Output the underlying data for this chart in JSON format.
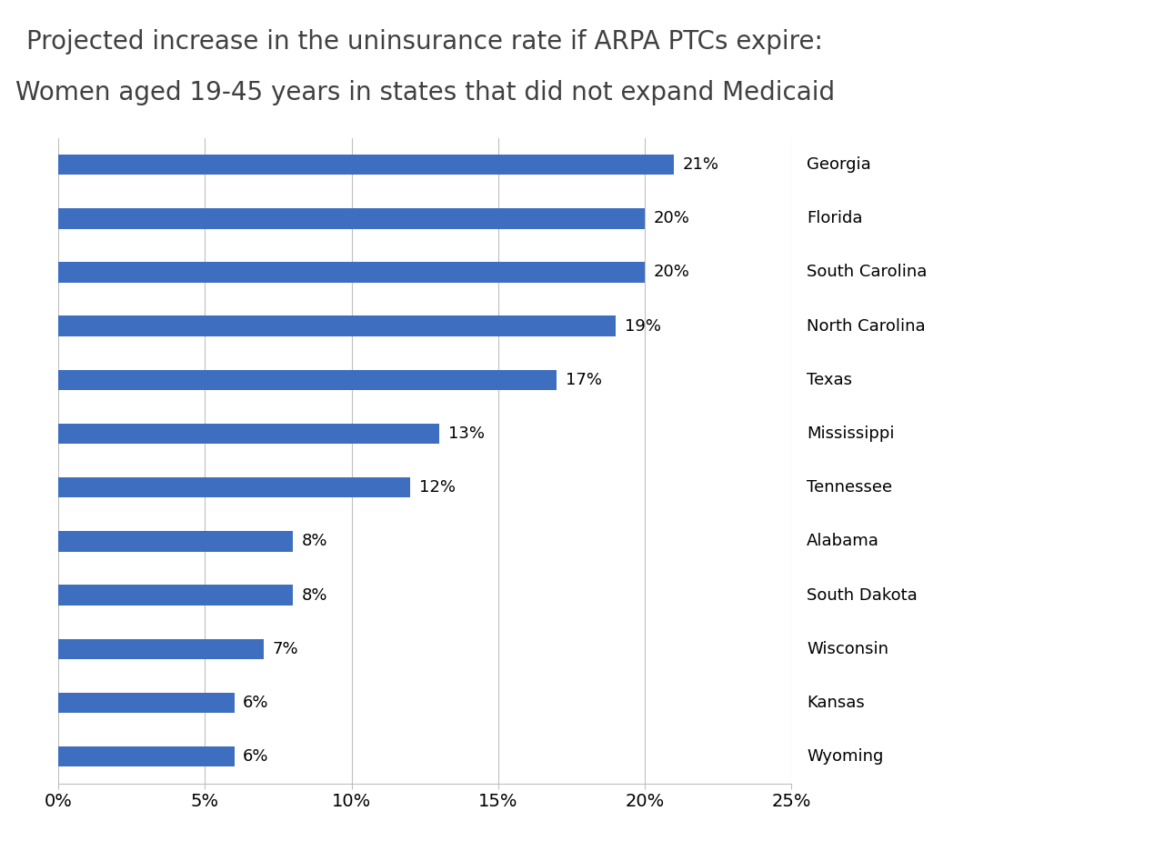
{
  "title_line1": "Projected increase in the uninsurance rate if ARPA PTCs expire:",
  "title_line2": "Women aged 19-45 years in states that did not expand Medicaid",
  "states": [
    "Georgia",
    "Florida",
    "South Carolina",
    "North Carolina",
    "Texas",
    "Mississippi",
    "Tennessee",
    "Alabama",
    "South Dakota",
    "Wisconsin",
    "Kansas",
    "Wyoming"
  ],
  "values": [
    21,
    20,
    20,
    19,
    17,
    13,
    12,
    8,
    8,
    7,
    6,
    6
  ],
  "labels": [
    "21%",
    "20%",
    "20%",
    "19%",
    "17%",
    "13%",
    "12%",
    "8%",
    "8%",
    "7%",
    "6%",
    "6%"
  ],
  "bar_color": "#3D6EBF",
  "xlim": [
    0,
    25
  ],
  "xticks": [
    0,
    5,
    10,
    15,
    20,
    25
  ],
  "xticklabels": [
    "0%",
    "5%",
    "10%",
    "15%",
    "20%",
    "25%"
  ],
  "background_color": "#FFFFFF",
  "title_fontsize": 20,
  "tick_fontsize": 14,
  "label_fontsize": 13,
  "state_fontsize": 13,
  "bar_height": 0.38
}
